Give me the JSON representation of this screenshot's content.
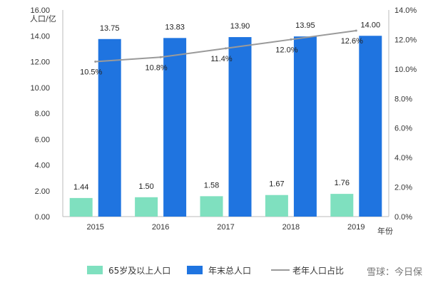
{
  "chart_data": {
    "type": "bar",
    "categories": [
      "2015",
      "2016",
      "2017",
      "2018",
      "2019"
    ],
    "series": [
      {
        "name": "65岁及以上人口",
        "kind": "bar",
        "axis": "left",
        "color": "#7fe0bf",
        "values": [
          1.44,
          1.5,
          1.58,
          1.67,
          1.76
        ],
        "labels": [
          "1.44",
          "1.50",
          "1.58",
          "1.67",
          "1.76"
        ]
      },
      {
        "name": "年末总人口",
        "kind": "bar",
        "axis": "left",
        "color": "#1f74e0",
        "values": [
          13.75,
          13.83,
          13.9,
          13.95,
          14.0
        ],
        "labels": [
          "13.75",
          "13.83",
          "13.90",
          "13.95",
          "14.00"
        ]
      },
      {
        "name": "老年人口占比",
        "kind": "line",
        "axis": "right",
        "color": "#9a9a9a",
        "values": [
          10.5,
          10.8,
          11.4,
          12.0,
          12.6
        ],
        "labels": [
          "10.5%",
          "10.8%",
          "11.4%",
          "12.0%",
          "12.6%"
        ]
      }
    ],
    "ylabel": "人口/亿",
    "xlabel": "年份",
    "ylim": [
      0,
      16
    ],
    "y2lim": [
      0,
      14
    ],
    "yticks": [
      "0.00",
      "2.00",
      "4.00",
      "6.00",
      "8.00",
      "10.00",
      "12.00",
      "14.00",
      "16.00"
    ],
    "y2ticks": [
      "0.0%",
      "2.0%",
      "4.0%",
      "6.0%",
      "8.0%",
      "10.0%",
      "12.0%",
      "14.0%"
    ],
    "grid": false,
    "legend": "bottom"
  },
  "legend_items": [
    {
      "label": "65岁及以上人口",
      "color": "#7fe0bf",
      "icon": "square"
    },
    {
      "label": "年末总人口",
      "color": "#1f74e0",
      "icon": "square"
    },
    {
      "label": "老年人口占比",
      "color": "#9a9a9a",
      "icon": "line"
    }
  ],
  "watermark": "雪球：今日保"
}
